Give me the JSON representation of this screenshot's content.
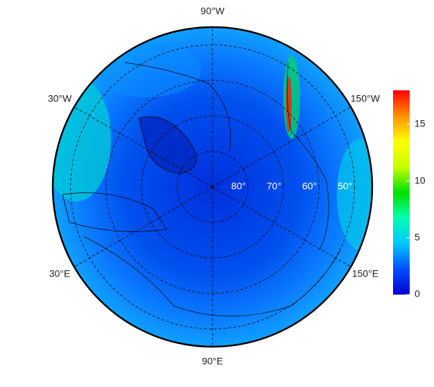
{
  "map": {
    "lon_labels": [
      {
        "value": -90,
        "label": "90°W"
      },
      {
        "value": -30,
        "label": "30°W"
      },
      {
        "value": -150,
        "label": "150°W"
      },
      {
        "value": 30,
        "label": "30°E"
      },
      {
        "value": 150,
        "label": "150°E"
      },
      {
        "value": 90,
        "label": "90°E"
      }
    ],
    "lat_circles": [
      {
        "value": 80,
        "label": "80°"
      },
      {
        "value": 70,
        "label": "70°"
      },
      {
        "value": 60,
        "label": "60°"
      },
      {
        "value": 50,
        "label": "50°"
      }
    ],
    "colorbar": {
      "lim": [
        0,
        18
      ],
      "ticks": [
        0,
        5,
        10,
        15
      ],
      "colors": [
        "#0000cc",
        "#0050ff",
        "#00c8ff",
        "#00ffb0",
        "#00e000",
        "#c8ff00",
        "#ffff00",
        "#ff9000",
        "#ff0000"
      ]
    }
  }
}
